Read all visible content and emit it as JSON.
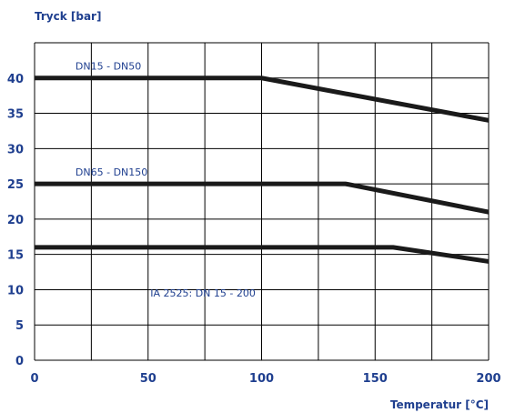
{
  "chart_data": {
    "type": "line",
    "ylabel": "Tryck [bar]",
    "xlabel": "Temperatur [°C]",
    "xlim": [
      0,
      200
    ],
    "ylim": [
      0,
      45
    ],
    "x_ticks": [
      0,
      50,
      100,
      150,
      200
    ],
    "y_ticks": [
      0,
      5,
      10,
      15,
      20,
      25,
      30,
      35,
      40
    ],
    "x_grid_step": 25,
    "y_grid_step": 5,
    "grid": true,
    "series": [
      {
        "name": "DN15 - DN50",
        "x": [
          0,
          100,
          200
        ],
        "y": [
          40,
          40,
          34
        ]
      },
      {
        "name": "DN65 - DN150",
        "x": [
          0,
          137,
          200
        ],
        "y": [
          25,
          25,
          21
        ]
      },
      {
        "name": "IA 2525:  DN 15 - 200",
        "x": [
          0,
          158,
          200
        ],
        "y": [
          16,
          16,
          14
        ]
      }
    ],
    "annotations": [
      {
        "text": "DN15 - DN50",
        "x": 18,
        "y": 41.2
      },
      {
        "text": "DN65 - DN150",
        "x": 18,
        "y": 26.2
      },
      {
        "text": "IA 2525:  DN 15 - 200",
        "x": 51,
        "y": 9.0
      }
    ],
    "colors": {
      "grid": "#000000",
      "line": "#1a1a1a",
      "text": "#1f3f8f"
    }
  }
}
